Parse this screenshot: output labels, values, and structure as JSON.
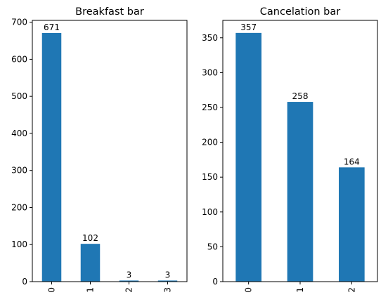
{
  "chart_data": [
    {
      "type": "bar",
      "title": "Breakfast bar",
      "categories": [
        "0",
        "1",
        "2",
        "3"
      ],
      "values": [
        671,
        102,
        3,
        3
      ],
      "data_labels": [
        "671",
        "102",
        "3",
        "3"
      ],
      "yticks": [
        0,
        100,
        200,
        300,
        400,
        500,
        600,
        700
      ],
      "ylim": [
        0,
        705
      ],
      "xlabel": "",
      "ylabel": "",
      "color": "#1f77b4",
      "grid": false,
      "legend": "none"
    },
    {
      "type": "bar",
      "title": "Cancelation bar",
      "categories": [
        "0",
        "1",
        "2"
      ],
      "values": [
        357,
        258,
        164
      ],
      "data_labels": [
        "357",
        "258",
        "164"
      ],
      "yticks": [
        0,
        50,
        100,
        150,
        200,
        250,
        300,
        350
      ],
      "ylim": [
        0,
        375
      ],
      "xlabel": "",
      "ylabel": "",
      "color": "#1f77b4",
      "grid": false,
      "legend": "none"
    }
  ]
}
